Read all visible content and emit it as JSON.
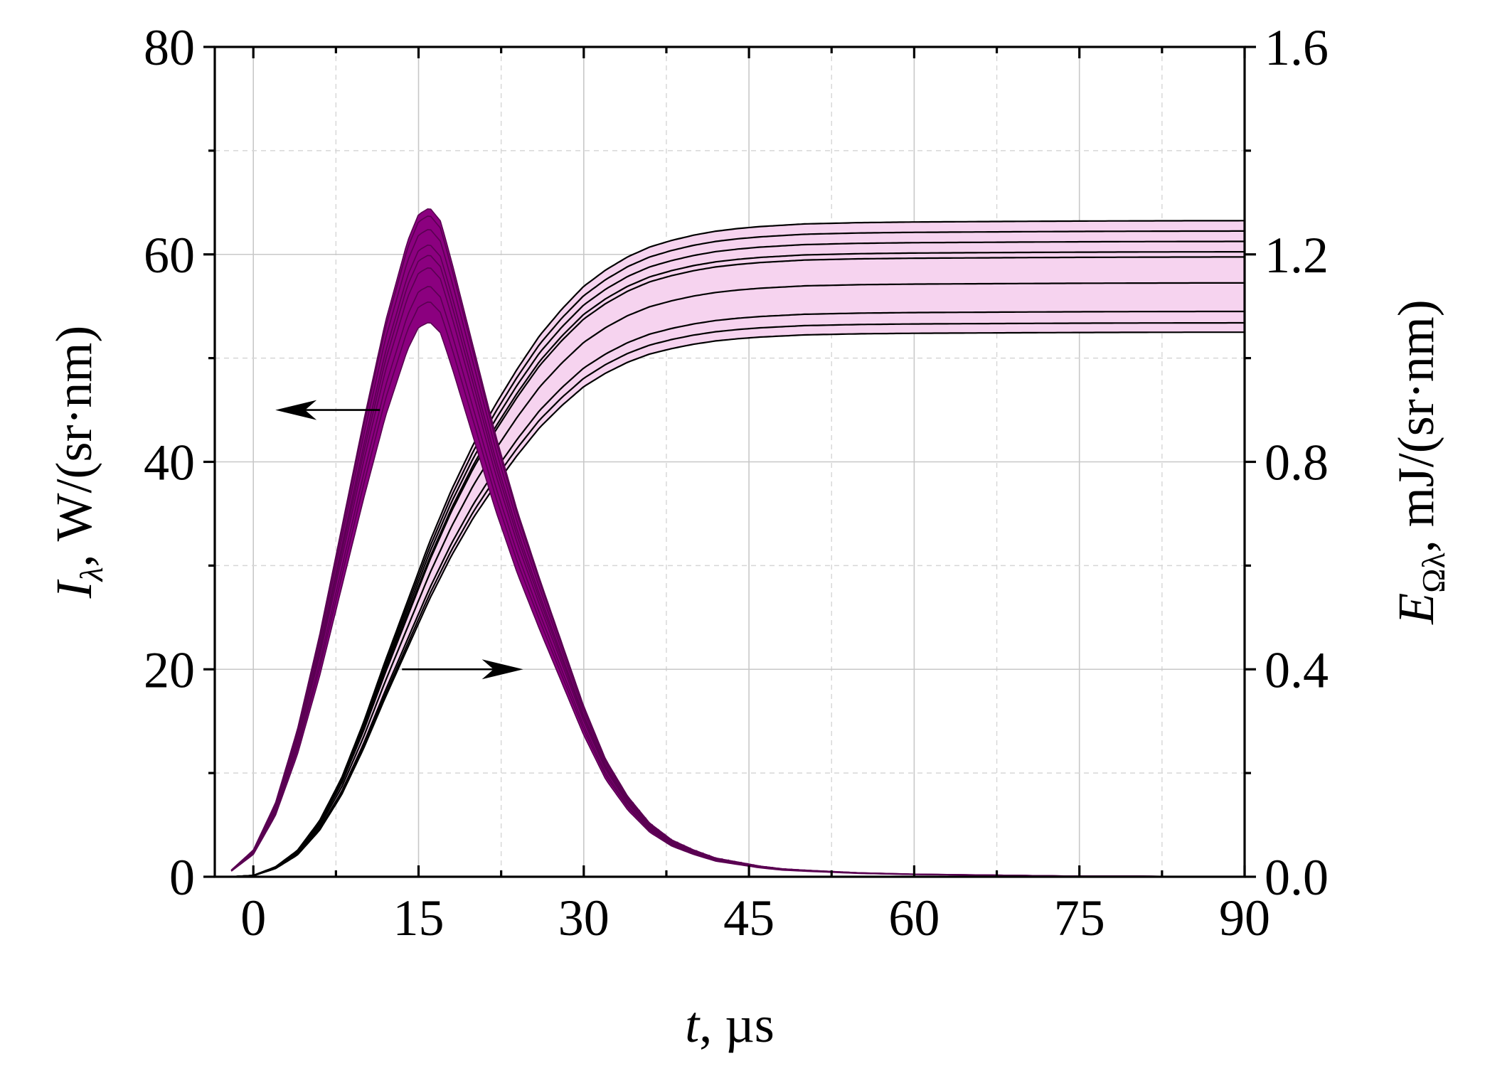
{
  "chart_data": {
    "type": "line",
    "xlabel": {
      "italic": "t",
      "rest": ", µs"
    },
    "ylabel_left": {
      "italic": "I",
      "sub": "λ",
      "rest": ", W/(sr·nm)"
    },
    "ylabel_right": {
      "italic": "E",
      "sub": "Ωλ",
      "rest": ", mJ/(sr·nm)"
    },
    "x_axis": {
      "min": -3.5,
      "max": 90,
      "ticks": [
        0,
        15,
        30,
        45,
        60,
        75,
        90
      ],
      "tick_labels": [
        "0",
        "15",
        "30",
        "45",
        "60",
        "75",
        "90"
      ],
      "minor_ticks": [
        7.5,
        22.5,
        37.5,
        52.5,
        67.5,
        82.5
      ]
    },
    "y_left": {
      "min": 0,
      "max": 80,
      "ticks": [
        0,
        20,
        40,
        60,
        80
      ],
      "tick_labels": [
        "0",
        "20",
        "40",
        "60",
        "80"
      ],
      "minor_ticks": [
        10,
        30,
        50,
        70
      ]
    },
    "y_right": {
      "min": 0,
      "max": 1.6,
      "ticks": [
        0,
        0.4,
        0.8,
        1.2,
        1.6
      ],
      "tick_labels": [
        "0.0",
        "0.4",
        "0.8",
        "1.2",
        "1.6"
      ],
      "minor_ticks": [
        0.2,
        0.6,
        1.0,
        1.4
      ]
    },
    "grid": true,
    "colors": {
      "intensity_fill": "#8b007f",
      "intensity_line": "#5a0052",
      "energy_fill": "#f6d3ef",
      "energy_line": "#000000"
    },
    "series": [
      {
        "axis": "left",
        "kind": "intensity_band",
        "peak_time": 16,
        "peak_values": [
          64.5,
          63.8,
          62.5,
          61.0,
          60.0,
          58.8,
          57.0,
          55.5,
          53.5
        ],
        "x": [
          -2,
          0,
          2,
          4,
          6,
          8,
          10,
          12,
          14,
          15,
          16,
          17,
          18,
          20,
          22,
          24,
          26,
          28,
          30,
          32,
          34,
          36,
          38,
          40,
          42,
          44,
          46,
          48,
          50,
          55,
          60,
          65,
          70,
          75,
          80,
          85,
          90
        ],
        "y_normalized": [
          0.01,
          0.04,
          0.11,
          0.22,
          0.36,
          0.52,
          0.68,
          0.83,
          0.95,
          0.99,
          1.0,
          0.98,
          0.92,
          0.79,
          0.66,
          0.545,
          0.445,
          0.35,
          0.255,
          0.175,
          0.12,
          0.08,
          0.055,
          0.04,
          0.028,
          0.022,
          0.016,
          0.012,
          0.01,
          0.006,
          0.004,
          0.003,
          0.002,
          0.001,
          0.001,
          0.0005,
          0.0003
        ]
      },
      {
        "axis": "right",
        "kind": "energy_band",
        "final_values": [
          1.265,
          1.245,
          1.225,
          1.205,
          1.195,
          1.145,
          1.09,
          1.068,
          1.05
        ],
        "x": [
          -2,
          0,
          2,
          4,
          6,
          8,
          10,
          12,
          14,
          16,
          18,
          20,
          22,
          24,
          26,
          28,
          30,
          32,
          34,
          36,
          38,
          40,
          42,
          44,
          46,
          48,
          50,
          55,
          60,
          65,
          70,
          75,
          80,
          85,
          90
        ],
        "y_normalized": [
          0.0,
          0.002,
          0.015,
          0.04,
          0.085,
          0.15,
          0.235,
          0.33,
          0.42,
          0.51,
          0.59,
          0.66,
          0.72,
          0.775,
          0.825,
          0.865,
          0.9,
          0.925,
          0.945,
          0.96,
          0.97,
          0.978,
          0.984,
          0.988,
          0.991,
          0.993,
          0.995,
          0.997,
          0.998,
          0.9985,
          0.999,
          0.9994,
          0.9997,
          0.9999,
          1.0
        ]
      }
    ],
    "annotations": [
      {
        "type": "arrow",
        "direction": "left",
        "target_axis": "left",
        "from": [
          11.5,
          45
        ],
        "to": [
          2,
          45
        ]
      },
      {
        "type": "arrow",
        "direction": "right",
        "target_axis": "right",
        "from": [
          13.5,
          0.4
        ],
        "to": [
          24.5,
          0.4
        ]
      }
    ]
  }
}
